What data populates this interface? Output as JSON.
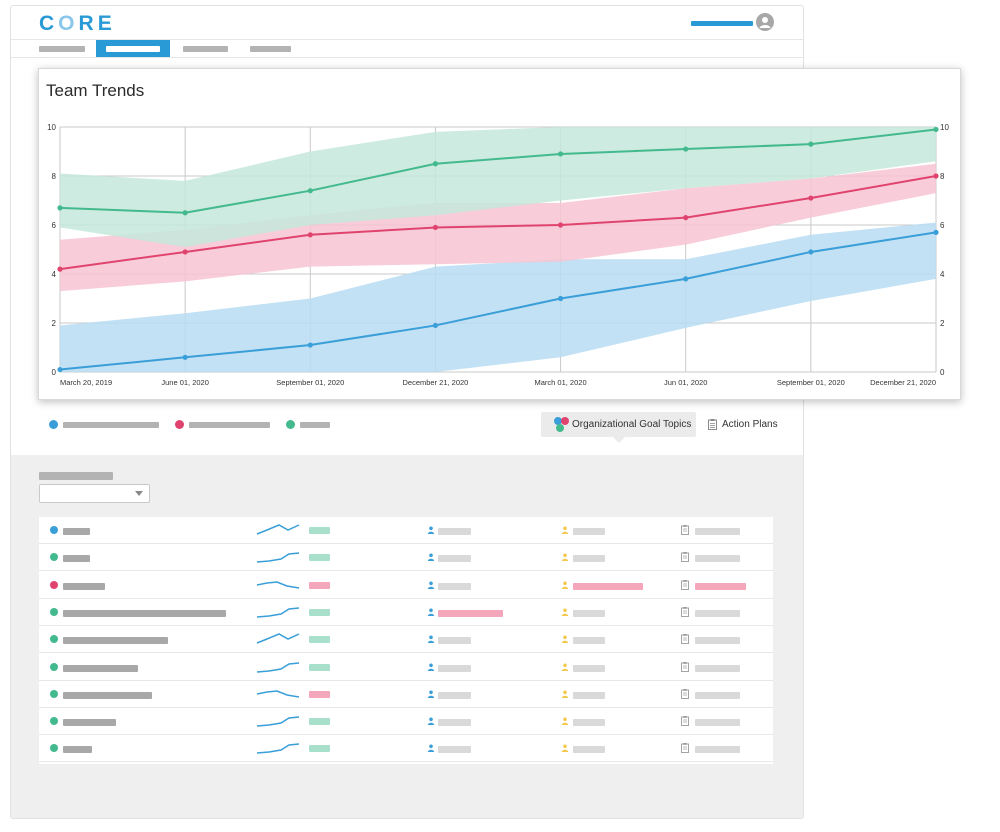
{
  "app": {
    "logo": "CORE",
    "logo_color": "#2a9ad6"
  },
  "header": {
    "user_icon": "user-avatar-icon"
  },
  "chart": {
    "title": "Team Trends"
  },
  "chart_data": {
    "type": "line",
    "title": "Team Trends",
    "x": [
      "March 20, 2019",
      "June 01, 2020",
      "September 01, 2020",
      "December 21, 2020",
      "March 01, 2020",
      "Jun 01, 2020",
      "September 01, 2020",
      "December 21, 2020"
    ],
    "ylim": [
      0,
      10
    ],
    "yticks": [
      0,
      2,
      4,
      6,
      8,
      10
    ],
    "grid": true,
    "right_axis": true,
    "series": [
      {
        "color": "#3a9fd8",
        "band_color": "#b9dcf2",
        "values": [
          0.1,
          0.6,
          1.1,
          1.9,
          3.0,
          3.8,
          4.9,
          5.7
        ],
        "upper": [
          1.9,
          2.4,
          3.0,
          4.3,
          4.6,
          4.6,
          5.6,
          6.1
        ],
        "lower": [
          0.0,
          0.0,
          0.0,
          0.0,
          0.6,
          1.8,
          2.9,
          3.8
        ]
      },
      {
        "color": "#e0446e",
        "band_color": "#f7c4d2",
        "values": [
          4.2,
          4.9,
          5.6,
          5.9,
          6.0,
          6.3,
          7.1,
          8.0
        ],
        "upper": [
          5.4,
          5.8,
          6.4,
          6.9,
          6.9,
          7.5,
          7.9,
          8.5
        ],
        "lower": [
          3.3,
          3.7,
          4.3,
          4.4,
          4.5,
          5.2,
          6.3,
          7.3
        ]
      },
      {
        "color": "#43b98e",
        "band_color": "#c4e8da",
        "values": [
          6.7,
          6.5,
          7.4,
          8.5,
          8.9,
          9.1,
          9.3,
          9.9
        ],
        "upper": [
          8.1,
          7.8,
          9.0,
          9.8,
          10.0,
          10.0,
          10.0,
          10.0
        ],
        "lower": [
          5.9,
          5.1,
          6.0,
          6.4,
          7.0,
          7.5,
          7.9,
          8.6
        ]
      }
    ],
    "overlap_color": "#c9bdbf"
  },
  "legend": {
    "items": [
      {
        "color": "#3a9fd8"
      },
      {
        "color": "#e0446e"
      },
      {
        "color": "#43b98e"
      }
    ]
  },
  "views": {
    "goals_label": "Organizational Goal Topics",
    "plans_label": "Action Plans",
    "goals_icon": "topics-icon",
    "plans_icon": "clipboard-icon"
  },
  "table": {
    "rows": [
      {
        "dot": "#3a9fd8",
        "score_color": "#a8e0cc",
        "spark": "up-down",
        "col2_color": "#d9d9d9",
        "col3_color": "#d9d9d9",
        "col4_color": "#d9d9d9"
      },
      {
        "dot": "#43b98e",
        "score_color": "#a8e0cc",
        "spark": "up",
        "col2_color": "#d9d9d9",
        "col3_color": "#d9d9d9",
        "col4_color": "#d9d9d9"
      },
      {
        "dot": "#e0446e",
        "score_color": "#f4a7bb",
        "spark": "down",
        "col2_color": "#d9d9d9",
        "col3_color": "#f4a7bb",
        "col4_color": "#f4a7bb"
      },
      {
        "dot": "#43b98e",
        "score_color": "#a8e0cc",
        "spark": "up",
        "col2_color": "#f4a7bb",
        "col3_color": "#d9d9d9",
        "col4_color": "#d9d9d9"
      },
      {
        "dot": "#43b98e",
        "score_color": "#a8e0cc",
        "spark": "up-down",
        "col2_color": "#d9d9d9",
        "col3_color": "#d9d9d9",
        "col4_color": "#d9d9d9"
      },
      {
        "dot": "#43b98e",
        "score_color": "#a8e0cc",
        "spark": "up",
        "col2_color": "#d9d9d9",
        "col3_color": "#d9d9d9",
        "col4_color": "#d9d9d9"
      },
      {
        "dot": "#43b98e",
        "score_color": "#f4a7bb",
        "spark": "down",
        "col2_color": "#d9d9d9",
        "col3_color": "#d9d9d9",
        "col4_color": "#d9d9d9"
      },
      {
        "dot": "#43b98e",
        "score_color": "#a8e0cc",
        "spark": "up",
        "col2_color": "#d9d9d9",
        "col3_color": "#d9d9d9",
        "col4_color": "#d9d9d9"
      },
      {
        "dot": "#43b98e",
        "score_color": "#a8e0cc",
        "spark": "up",
        "col2_color": "#d9d9d9",
        "col3_color": "#d9d9d9",
        "col4_color": "#d9d9d9"
      }
    ]
  }
}
